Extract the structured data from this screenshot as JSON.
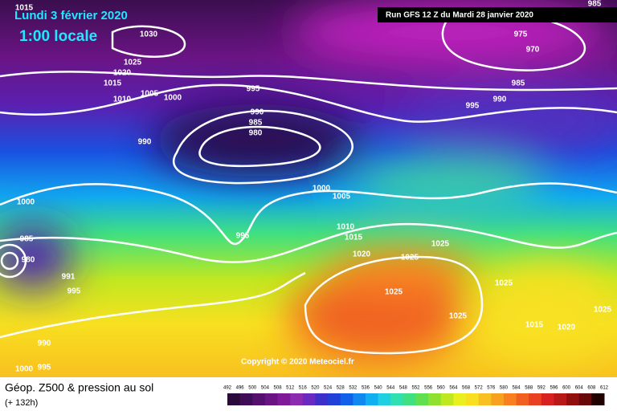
{
  "header": {
    "date": "Lundi 3 février 2020",
    "time": "1:00 locale",
    "run": "Run GFS 12 Z du Mardi 28 janvier 2020"
  },
  "copyright": "Copyright © 2020 Meteociel.fr",
  "footer": {
    "title": "Géop. Z500 & pression au sol",
    "lead": "(+ 132h)"
  },
  "legend": {
    "ticks": [
      492,
      496,
      500,
      504,
      508,
      512,
      516,
      520,
      524,
      528,
      532,
      536,
      540,
      544,
      548,
      552,
      556,
      560,
      564,
      568,
      572,
      576,
      580,
      584,
      588,
      592,
      596,
      600,
      604,
      608,
      612
    ],
    "colors": [
      "#2a0a3a",
      "#3d0e55",
      "#53106e",
      "#6a1484",
      "#80189a",
      "#8c2ab0",
      "#6a2ac0",
      "#3d30c8",
      "#2040d8",
      "#1060e8",
      "#1088f0",
      "#10b0f0",
      "#20d0e0",
      "#30e0b0",
      "#40e080",
      "#60e050",
      "#90e030",
      "#c0e820",
      "#e8f020",
      "#f8e020",
      "#f8c020",
      "#f8a020",
      "#f88020",
      "#f06020",
      "#e84020",
      "#d82020",
      "#b81818",
      "#901010",
      "#680808",
      "#200000"
    ]
  },
  "isobars": [
    "1015",
    "1030",
    "1025",
    "1020",
    "1015",
    "1010",
    "1005",
    "1000",
    "995",
    "990",
    "985",
    "980",
    "990",
    "1000",
    "1005",
    "1000",
    "985",
    "980",
    "995",
    "1010",
    "1015",
    "1020",
    "1025",
    "1025",
    "1025",
    "1025",
    "1025",
    "1025",
    "1015",
    "1020",
    "991",
    "995",
    "990",
    "1000",
    "995",
    "985",
    "975",
    "970",
    "985",
    "995",
    "990"
  ]
}
